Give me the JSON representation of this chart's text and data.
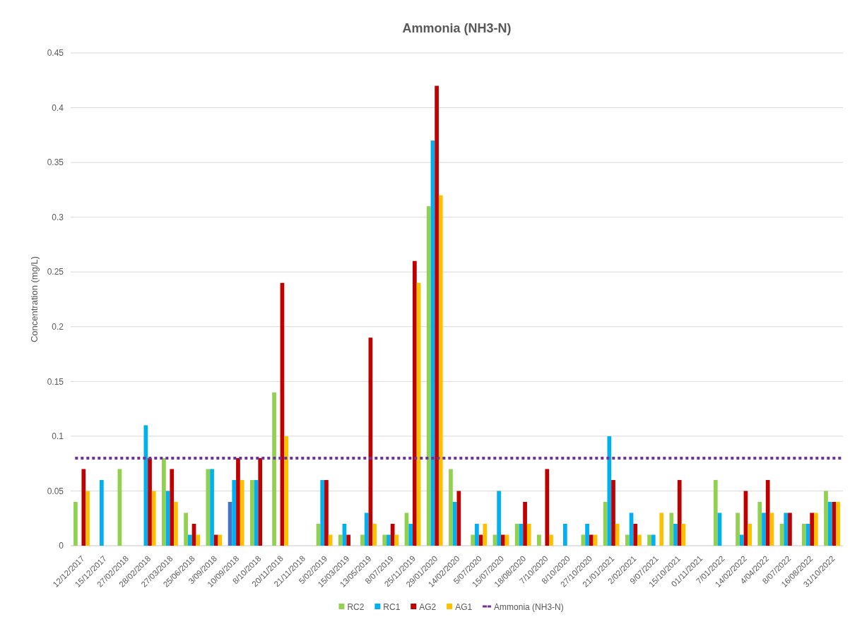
{
  "chart_data": {
    "type": "bar",
    "title": "Ammonia (NH3-N)",
    "ylabel": "Concentration (mg/L)",
    "categories": [
      "12/12/2017",
      "15/12/2017",
      "27/02/2018",
      "28/02/2018",
      "27/03/2018",
      "25/06/2018",
      "3/09/2018",
      "10/09/2018",
      "8/10/2018",
      "20/11/2018",
      "21/11/2018",
      "5/02/2019",
      "15/03/2019",
      "13/05/2019",
      "8/07/2019",
      "25/11/2019",
      "29/01/2020",
      "14/02/2020",
      "5/07/2020",
      "15/07/2020",
      "18/08/2020",
      "7/10/2020",
      "8/10/2020",
      "27/10/2020",
      "21/01/2021",
      "2/02/2021",
      "9/07/2021",
      "15/10/2021",
      "01/11/2021",
      "7/01/2022",
      "14/02/2022",
      "4/04/2022",
      "8/07/2022",
      "16/08/2022",
      "31/10/2022"
    ],
    "series": [
      {
        "name": "RC2",
        "color": "#92d050",
        "colors": [
          "#92d050",
          "#92d050",
          "#92d050",
          "#92d050",
          "#92d050",
          "#92d050",
          "#92d050",
          "#4472c4",
          "#92d050",
          "#92d050",
          "#92d050",
          "#92d050",
          "#92d050",
          "#92d050",
          "#92d050",
          "#92d050",
          "#92d050",
          "#92d050",
          "#92d050",
          "#92d050",
          "#92d050",
          "#92d050",
          "#92d050",
          "#92d050",
          "#92d050",
          "#92d050",
          "#92d050",
          "#92d050",
          "#92d050",
          "#92d050",
          "#92d050",
          "#92d050",
          "#92d050",
          "#92d050",
          "#92d050"
        ],
        "values": [
          0.04,
          null,
          0.07,
          null,
          0.08,
          0.03,
          0.07,
          0.04,
          0.06,
          0.14,
          null,
          0.02,
          0.01,
          0.01,
          0.01,
          0.03,
          0.31,
          0.07,
          0.01,
          0.01,
          0.02,
          0.01,
          null,
          0.01,
          0.04,
          0.01,
          0.01,
          0.03,
          null,
          0.06,
          0.03,
          0.04,
          0.02,
          0.02,
          0.05
        ]
      },
      {
        "name": "RC1",
        "color": "#00b0f0",
        "values": [
          null,
          0.06,
          null,
          0.11,
          0.05,
          0.01,
          0.07,
          0.06,
          0.06,
          null,
          null,
          0.06,
          0.02,
          0.03,
          0.01,
          0.02,
          0.37,
          0.04,
          0.02,
          0.05,
          0.02,
          null,
          0.02,
          0.02,
          0.1,
          0.03,
          0.01,
          0.02,
          null,
          0.03,
          0.01,
          0.03,
          0.03,
          0.02,
          0.04
        ]
      },
      {
        "name": "AG2",
        "color": "#c00000",
        "values": [
          0.07,
          null,
          null,
          0.08,
          0.07,
          0.02,
          0.01,
          0.08,
          0.08,
          0.24,
          null,
          0.06,
          0.01,
          0.19,
          0.02,
          0.26,
          0.42,
          0.05,
          0.01,
          0.01,
          0.04,
          0.07,
          null,
          0.01,
          0.06,
          0.02,
          null,
          0.06,
          null,
          null,
          0.05,
          0.06,
          0.03,
          0.03,
          0.04
        ]
      },
      {
        "name": "AG1",
        "color": "#ffc000",
        "values": [
          0.05,
          null,
          null,
          0.05,
          0.04,
          0.01,
          0.01,
          0.06,
          null,
          0.1,
          null,
          0.01,
          null,
          0.02,
          0.01,
          0.24,
          0.32,
          null,
          0.02,
          0.01,
          0.02,
          0.01,
          null,
          0.01,
          0.02,
          0.01,
          0.03,
          0.02,
          null,
          null,
          0.02,
          0.03,
          null,
          0.03,
          0.04
        ]
      }
    ],
    "ref_lines": [
      {
        "axis": "y",
        "value": 0.08,
        "label": "Ammonia (NH3-N)",
        "color": "#7030a0",
        "line_style": "dotted"
      }
    ],
    "ylim": [
      0,
      0.45
    ],
    "yticks": [
      0,
      0.05,
      0.1,
      0.15,
      0.2,
      0.25,
      0.3,
      0.35,
      0.4,
      0.45
    ],
    "grid": "y",
    "legend": "bottom"
  }
}
